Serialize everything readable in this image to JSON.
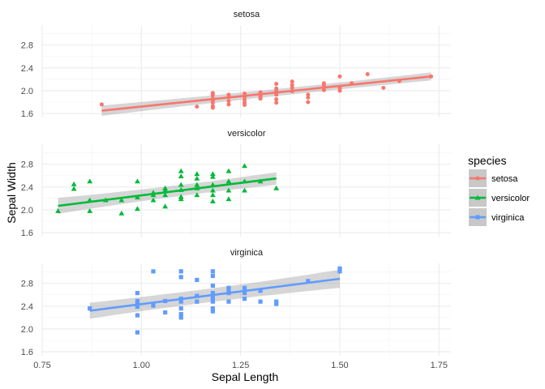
{
  "chart_data": {
    "type": "scatter",
    "xlabel": "Sepal Length",
    "ylabel": "Sepal Width",
    "xlim": [
      0.75,
      1.78
    ],
    "ylim": [
      1.53,
      3.15
    ],
    "x_ticks": [
      "0.75",
      "1.00",
      "1.25",
      "1.50",
      "1.75"
    ],
    "y_ticks": [
      "1.6",
      "2.0",
      "2.4",
      "2.8"
    ],
    "grid": true,
    "facet_by": "species",
    "smooth": "lm with confidence band",
    "legend": {
      "title": "species",
      "placement": "right",
      "entries": [
        "setosa",
        "versicolor",
        "virginica"
      ]
    },
    "series": [
      {
        "name": "setosa",
        "color": "#F8766D",
        "shape": "circle",
        "fit": {
          "x": [
            0.9,
            1.73
          ],
          "y": [
            1.65,
            2.25
          ]
        },
        "band_halfwidth": [
          0.09,
          0.07
        ],
        "points": [
          [
            0.9,
            1.76
          ],
          [
            1.14,
            1.72
          ],
          [
            1.18,
            1.7
          ],
          [
            1.18,
            1.73
          ],
          [
            1.18,
            1.79
          ],
          [
            1.18,
            1.82
          ],
          [
            1.18,
            1.86
          ],
          [
            1.18,
            1.92
          ],
          [
            1.18,
            1.96
          ],
          [
            1.22,
            1.76
          ],
          [
            1.22,
            1.82
          ],
          [
            1.22,
            1.89
          ],
          [
            1.22,
            1.93
          ],
          [
            1.26,
            1.75
          ],
          [
            1.26,
            1.79
          ],
          [
            1.26,
            1.84
          ],
          [
            1.26,
            1.89
          ],
          [
            1.26,
            1.95
          ],
          [
            1.3,
            1.86
          ],
          [
            1.3,
            1.89
          ],
          [
            1.3,
            1.92
          ],
          [
            1.3,
            1.97
          ],
          [
            1.34,
            1.79
          ],
          [
            1.34,
            1.85
          ],
          [
            1.34,
            1.93
          ],
          [
            1.34,
            1.99
          ],
          [
            1.34,
            2.04
          ],
          [
            1.34,
            2.12
          ],
          [
            1.38,
            1.99
          ],
          [
            1.38,
            2.05
          ],
          [
            1.38,
            2.1
          ],
          [
            1.38,
            2.16
          ],
          [
            1.42,
            1.8
          ],
          [
            1.42,
            1.88
          ],
          [
            1.42,
            1.93
          ],
          [
            1.46,
            2.01
          ],
          [
            1.46,
            2.05
          ],
          [
            1.46,
            2.09
          ],
          [
            1.46,
            2.13
          ],
          [
            1.5,
            2.0
          ],
          [
            1.5,
            2.05
          ],
          [
            1.5,
            2.25
          ],
          [
            1.53,
            2.13
          ],
          [
            1.57,
            2.29
          ],
          [
            1.61,
            2.05
          ],
          [
            1.65,
            2.17
          ],
          [
            1.73,
            2.25
          ]
        ]
      },
      {
        "name": "versicolor",
        "color": "#00BA38",
        "shape": "triangle",
        "fit": {
          "x": [
            0.79,
            1.34
          ],
          "y": [
            2.07,
            2.55
          ]
        },
        "band_halfwidth": [
          0.14,
          0.11
        ],
        "points": [
          [
            0.79,
            1.98
          ],
          [
            0.83,
            2.37
          ],
          [
            0.83,
            2.45
          ],
          [
            0.87,
            1.98
          ],
          [
            0.87,
            2.17
          ],
          [
            0.87,
            2.5
          ],
          [
            0.91,
            2.17
          ],
          [
            0.95,
            1.94
          ],
          [
            0.95,
            2.17
          ],
          [
            0.99,
            2.02
          ],
          [
            0.99,
            2.22
          ],
          [
            0.99,
            2.5
          ],
          [
            1.03,
            2.17
          ],
          [
            1.03,
            2.26
          ],
          [
            1.03,
            2.3
          ],
          [
            1.06,
            2.06
          ],
          [
            1.06,
            2.26
          ],
          [
            1.06,
            2.34
          ],
          [
            1.06,
            2.38
          ],
          [
            1.1,
            2.19
          ],
          [
            1.1,
            2.23
          ],
          [
            1.1,
            2.35
          ],
          [
            1.1,
            2.44
          ],
          [
            1.1,
            2.59
          ],
          [
            1.1,
            2.68
          ],
          [
            1.14,
            2.26
          ],
          [
            1.14,
            2.38
          ],
          [
            1.14,
            2.44
          ],
          [
            1.14,
            2.55
          ],
          [
            1.14,
            2.63
          ],
          [
            1.18,
            2.15
          ],
          [
            1.18,
            2.26
          ],
          [
            1.18,
            2.34
          ],
          [
            1.18,
            2.44
          ],
          [
            1.18,
            2.58
          ],
          [
            1.18,
            2.63
          ],
          [
            1.22,
            2.19
          ],
          [
            1.22,
            2.34
          ],
          [
            1.22,
            2.5
          ],
          [
            1.22,
            2.68
          ],
          [
            1.26,
            2.34
          ],
          [
            1.26,
            2.5
          ],
          [
            1.26,
            2.77
          ],
          [
            1.3,
            2.5
          ],
          [
            1.34,
            2.38
          ]
        ]
      },
      {
        "name": "virginica",
        "color": "#619CFF",
        "shape": "square",
        "fit": {
          "x": [
            0.87,
            1.5
          ],
          "y": [
            2.32,
            2.88
          ]
        },
        "band_halfwidth": [
          0.14,
          0.16
        ],
        "points": [
          [
            0.87,
            2.36
          ],
          [
            0.99,
            1.94
          ],
          [
            0.99,
            2.24
          ],
          [
            0.99,
            2.39
          ],
          [
            0.99,
            2.44
          ],
          [
            0.99,
            2.49
          ],
          [
            0.99,
            2.63
          ],
          [
            1.03,
            2.41
          ],
          [
            1.03,
            3.01
          ],
          [
            1.06,
            2.29
          ],
          [
            1.06,
            2.49
          ],
          [
            1.1,
            2.2
          ],
          [
            1.1,
            2.26
          ],
          [
            1.1,
            2.36
          ],
          [
            1.1,
            2.48
          ],
          [
            1.1,
            2.53
          ],
          [
            1.1,
            2.91
          ],
          [
            1.1,
            3.01
          ],
          [
            1.14,
            2.48
          ],
          [
            1.14,
            2.58
          ],
          [
            1.14,
            2.86
          ],
          [
            1.18,
            2.31
          ],
          [
            1.18,
            2.36
          ],
          [
            1.18,
            2.48
          ],
          [
            1.18,
            2.53
          ],
          [
            1.18,
            2.58
          ],
          [
            1.18,
            2.63
          ],
          [
            1.18,
            2.76
          ],
          [
            1.18,
            2.93
          ],
          [
            1.18,
            3.01
          ],
          [
            1.22,
            2.48
          ],
          [
            1.22,
            2.63
          ],
          [
            1.22,
            2.69
          ],
          [
            1.22,
            2.72
          ],
          [
            1.26,
            2.53
          ],
          [
            1.26,
            2.63
          ],
          [
            1.26,
            2.67
          ],
          [
            1.26,
            2.72
          ],
          [
            1.3,
            2.48
          ],
          [
            1.3,
            2.67
          ],
          [
            1.34,
            2.44
          ],
          [
            1.34,
            2.48
          ],
          [
            1.42,
            2.84
          ],
          [
            1.5,
            3.01
          ],
          [
            1.5,
            3.06
          ]
        ]
      }
    ]
  }
}
